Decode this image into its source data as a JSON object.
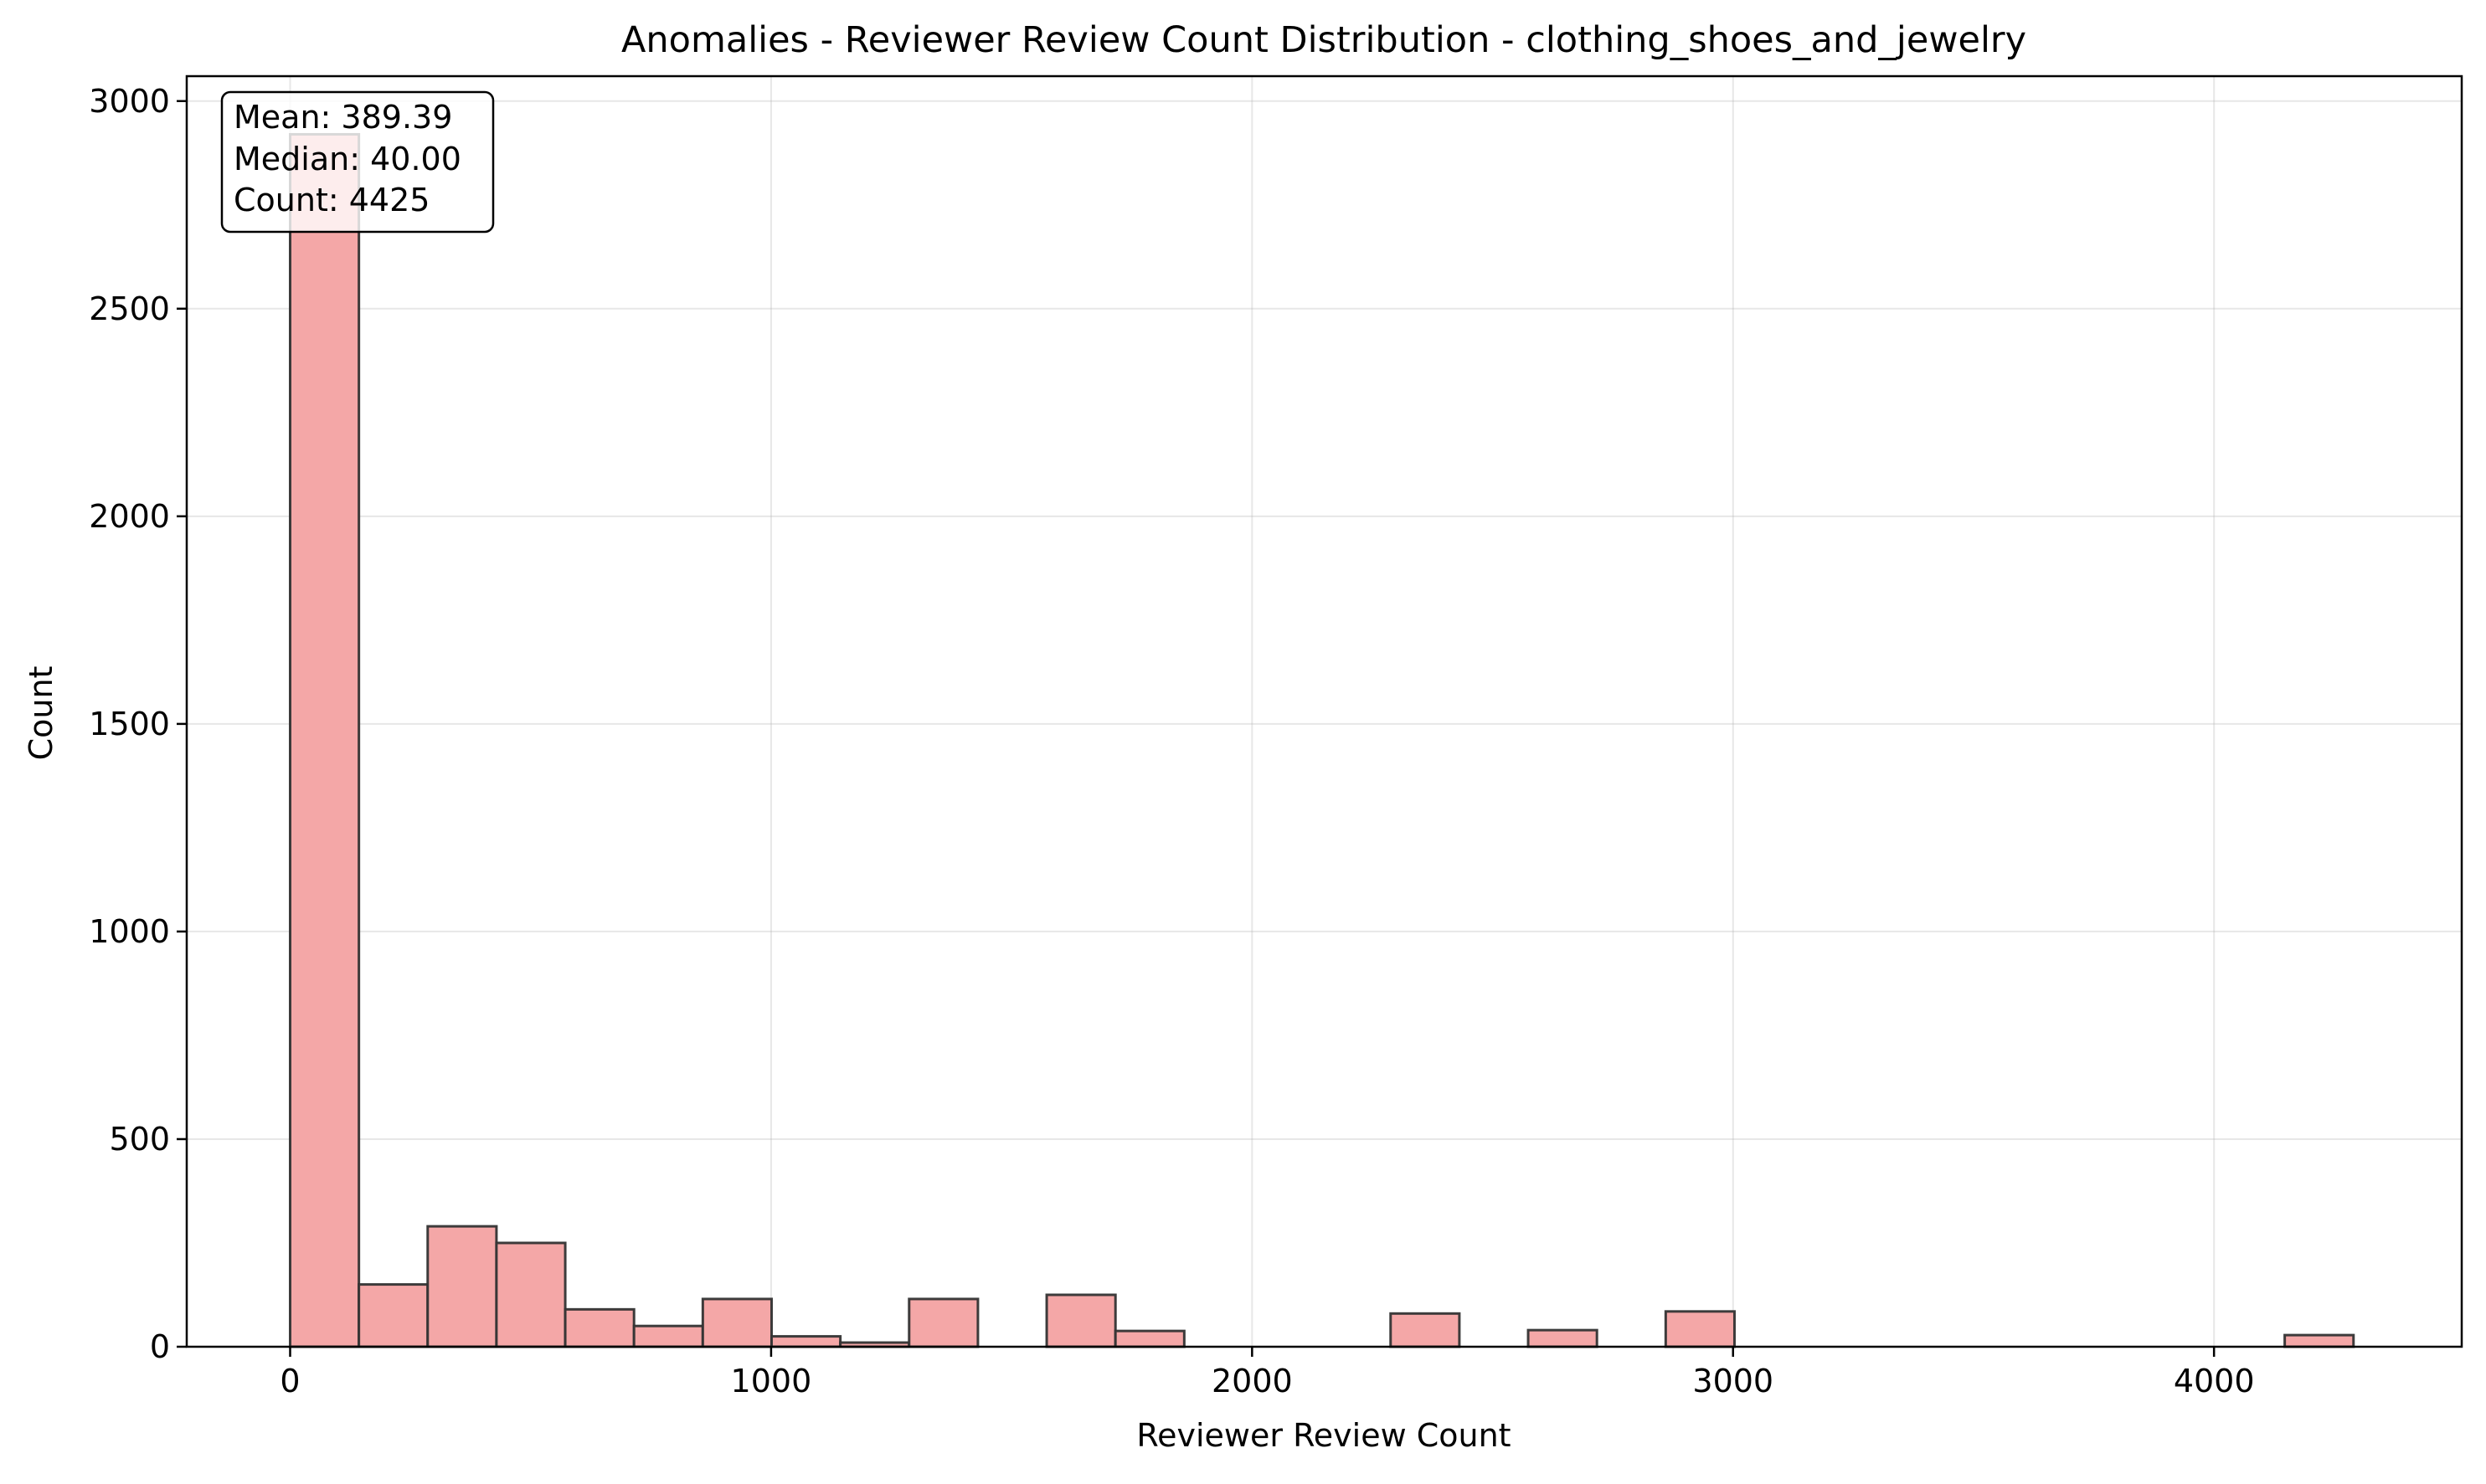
{
  "chart_data": {
    "type": "bar",
    "title": "Anomalies - Reviewer Review Count Distribution - clothing_shoes_and_jewelry",
    "xlabel": "Reviewer Review Count",
    "ylabel": "Count",
    "xlim": [
      -215,
      4515
    ],
    "ylim": [
      0,
      3060
    ],
    "xticks": [
      0,
      1000,
      2000,
      3000,
      4000
    ],
    "yticks": [
      0,
      500,
      1000,
      1500,
      2000,
      2500,
      3000
    ],
    "grid": true,
    "bar_color": "#f4a7a7",
    "edge_color": "#333333",
    "bin_width": 143,
    "bins": [
      {
        "x0": 0,
        "x1": 143,
        "value": 2920
      },
      {
        "x0": 143,
        "x1": 286,
        "value": 150
      },
      {
        "x0": 286,
        "x1": 429,
        "value": 290
      },
      {
        "x0": 429,
        "x1": 572,
        "value": 250
      },
      {
        "x0": 572,
        "x1": 715,
        "value": 90
      },
      {
        "x0": 715,
        "x1": 858,
        "value": 50
      },
      {
        "x0": 858,
        "x1": 1001,
        "value": 115
      },
      {
        "x0": 1001,
        "x1": 1144,
        "value": 25
      },
      {
        "x0": 1144,
        "x1": 1287,
        "value": 10
      },
      {
        "x0": 1287,
        "x1": 1430,
        "value": 115
      },
      {
        "x0": 1430,
        "x1": 1573,
        "value": 0
      },
      {
        "x0": 1573,
        "x1": 1716,
        "value": 125
      },
      {
        "x0": 1716,
        "x1": 1859,
        "value": 38
      },
      {
        "x0": 1859,
        "x1": 2002,
        "value": 0
      },
      {
        "x0": 2002,
        "x1": 2145,
        "value": 0
      },
      {
        "x0": 2145,
        "x1": 2288,
        "value": 0
      },
      {
        "x0": 2288,
        "x1": 2431,
        "value": 80
      },
      {
        "x0": 2431,
        "x1": 2574,
        "value": 0
      },
      {
        "x0": 2574,
        "x1": 2717,
        "value": 40
      },
      {
        "x0": 2717,
        "x1": 2860,
        "value": 0
      },
      {
        "x0": 2860,
        "x1": 3003,
        "value": 85
      },
      {
        "x0": 3003,
        "x1": 3146,
        "value": 0
      },
      {
        "x0": 3146,
        "x1": 3289,
        "value": 0
      },
      {
        "x0": 3289,
        "x1": 3432,
        "value": 0
      },
      {
        "x0": 3432,
        "x1": 3575,
        "value": 0
      },
      {
        "x0": 3575,
        "x1": 3718,
        "value": 0
      },
      {
        "x0": 3718,
        "x1": 3861,
        "value": 0
      },
      {
        "x0": 3861,
        "x1": 4004,
        "value": 0
      },
      {
        "x0": 4004,
        "x1": 4147,
        "value": 0
      },
      {
        "x0": 4147,
        "x1": 4290,
        "value": 28
      }
    ],
    "stats_box": {
      "position": "top-left",
      "lines": [
        "Mean: 389.39",
        "Median: 40.00",
        "Count: 4425"
      ]
    }
  }
}
